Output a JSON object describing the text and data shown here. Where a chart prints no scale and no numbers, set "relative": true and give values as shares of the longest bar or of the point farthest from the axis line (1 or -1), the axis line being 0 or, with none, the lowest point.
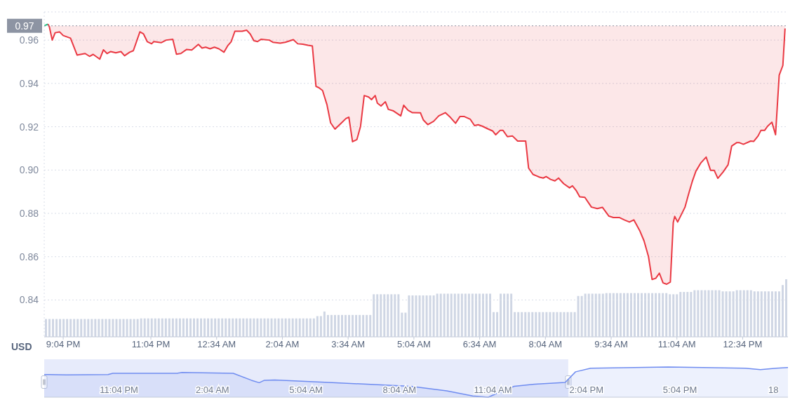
{
  "chart_data": [
    {
      "type": "line",
      "ylabel": "USD",
      "xlim": [
        "--01-17T20:38",
        "--01-18T13:36"
      ],
      "xticks": [
        {
          "value": "--01-17T21:04",
          "label": "9:04 PM"
        },
        {
          "value": "--01-17T23:04",
          "label": "11:04 PM"
        },
        {
          "value": "--01-18T00:34",
          "label": "12:34 AM"
        },
        {
          "value": "--01-18T02:04",
          "label": "2:04 AM"
        },
        {
          "value": "--01-18T03:34",
          "label": "3:34 AM"
        },
        {
          "value": "--01-18T05:04",
          "label": "5:04 AM"
        },
        {
          "value": "--01-18T06:34",
          "label": "6:34 AM"
        },
        {
          "value": "--01-18T08:04",
          "label": "8:04 AM"
        },
        {
          "value": "--01-18T09:34",
          "label": "9:34 AM"
        },
        {
          "value": "--01-18T11:04",
          "label": "11:04 AM"
        },
        {
          "value": "--01-18T12:34",
          "label": "12:34 PM"
        }
      ],
      "ylim": [
        0.823,
        0.973
      ],
      "yticks": [
        0.84,
        0.86,
        0.88,
        {
          "value": 0.9,
          "label": "0.90"
        },
        0.92,
        0.94,
        0.96
      ],
      "grid": "y",
      "ref_lines": [
        {
          "axis": "y",
          "value": 0.9666,
          "label": "0.97",
          "color": "#8d94a3",
          "line_style": "dotted"
        }
      ],
      "series": [
        {
          "color": "#16c784",
          "x": [
            "--01-17T20:38",
            "--01-17T20:43"
          ],
          "values": [
            0.9666,
            0.9674
          ]
        },
        {
          "color": "#ea3943",
          "x": [
            "--01-17T20:43",
            "--01-17T20:45",
            "--01-17T20:49",
            "--01-17T20:53",
            "--01-17T20:59",
            "--01-17T21:04",
            "--01-17T21:14",
            "--01-17T21:23",
            "--01-17T21:34",
            "--01-17T21:40",
            "--01-17T21:45",
            "--01-17T21:54",
            "--01-17T21:59",
            "--01-17T22:04",
            "--01-17T22:09",
            "--01-17T22:16",
            "--01-17T22:23",
            "--01-17T22:28",
            "--01-17T22:35",
            "--01-17T22:40",
            "--01-17T22:49",
            "--01-17T22:54",
            "--01-17T22:59",
            "--01-17T23:05",
            "--01-17T23:08",
            "--01-17T23:18",
            "--01-17T23:25",
            "--01-17T23:34",
            "--01-17T23:39",
            "--01-17T23:45",
            "--01-17T23:53",
            "--01-18T00:00",
            "--01-18T00:09",
            "--01-18T00:14",
            "--01-18T00:19",
            "--01-18T00:25",
            "--01-18T00:31",
            "--01-18T00:37",
            "--01-18T00:44",
            "--01-18T00:49",
            "--01-18T00:54",
            "--01-18T00:59",
            "--01-18T01:09",
            "--01-18T01:15",
            "--01-18T01:20",
            "--01-18T01:25",
            "--01-18T01:30",
            "--01-18T01:35",
            "--01-18T01:46",
            "--01-18T01:51",
            "--01-18T02:01",
            "--01-18T02:08",
            "--01-18T02:19",
            "--01-18T02:25",
            "--01-18T02:32",
            "--01-18T02:39",
            "--01-18T02:45",
            "--01-18T02:50",
            "--01-18T02:54",
            "--01-18T02:59",
            "--01-18T03:05",
            "--01-18T03:10",
            "--01-18T03:16",
            "--01-18T03:24",
            "--01-18T03:31",
            "--01-18T03:35",
            "--01-18T03:40",
            "--01-18T03:46",
            "--01-18T03:51",
            "--01-18T03:56",
            "--01-18T04:02",
            "--01-18T04:06",
            "--01-18T04:11",
            "--01-18T04:14",
            "--01-18T04:19",
            "--01-18T04:25",
            "--01-18T04:29",
            "--01-18T04:36",
            "--01-18T04:46",
            "--01-18T04:50",
            "--01-18T04:56",
            "--01-18T05:02",
            "--01-18T05:13",
            "--01-18T05:17",
            "--01-18T05:23",
            "--01-18T05:31",
            "--01-18T05:38",
            "--01-18T05:47",
            "--01-18T05:54",
            "--01-18T06:01",
            "--01-18T06:07",
            "--01-18T06:13",
            "--01-18T06:21",
            "--01-18T06:27",
            "--01-18T06:32",
            "--01-18T06:38",
            "--01-18T06:46",
            "--01-18T06:52",
            "--01-18T06:56",
            "--01-18T07:02",
            "--01-18T07:06",
            "--01-18T07:12",
            "--01-18T07:19",
            "--01-18T07:26",
            "--01-18T07:37",
            "--01-18T07:41",
            "--01-18T07:47",
            "--01-18T07:56",
            "--01-18T08:01",
            "--01-18T08:05",
            "--01-18T08:11",
            "--01-18T08:17",
            "--01-18T08:22",
            "--01-18T08:29",
            "--01-18T08:37",
            "--01-18T08:41",
            "--01-18T08:46",
            "--01-18T08:51",
            "--01-18T08:58",
            "--01-18T09:07",
            "--01-18T09:15",
            "--01-18T09:22",
            "--01-18T09:31",
            "--01-18T09:37",
            "--01-18T09:45",
            "--01-18T09:52",
            "--01-18T09:59",
            "--01-18T10:05",
            "--01-18T10:13",
            "--01-18T10:19",
            "--01-18T10:25",
            "--01-18T10:30",
            "--01-18T10:35",
            "--01-18T10:40",
            "--01-18T10:45",
            "--01-18T10:50",
            "--01-18T10:55",
            "--01-18T10:59",
            "--01-18T11:01",
            "--01-18T11:05",
            "--01-18T11:15",
            "--01-18T11:20",
            "--01-18T11:25",
            "--01-18T11:30",
            "--01-18T11:37",
            "--01-18T11:44",
            "--01-18T11:50",
            "--01-18T11:55",
            "--01-18T12:00",
            "--01-18T12:07",
            "--01-18T12:14",
            "--01-18T12:19",
            "--01-18T12:26",
            "--01-18T12:29",
            "--01-18T12:35",
            "--01-18T12:45",
            "--01-18T12:49",
            "--01-18T12:55",
            "--01-18T12:59",
            "--01-18T13:04",
            "--01-18T13:08",
            "--01-18T13:14",
            "--01-18T13:19",
            "--01-18T13:24",
            "--01-18T13:29",
            "--01-18T13:32"
          ],
          "values": [
            0.9674,
            0.9662,
            0.96,
            0.9634,
            0.9638,
            0.9621,
            0.9609,
            0.9531,
            0.9538,
            0.9525,
            0.9534,
            0.9512,
            0.9555,
            0.9538,
            0.9547,
            0.9541,
            0.9547,
            0.9528,
            0.9544,
            0.9551,
            0.9638,
            0.9628,
            0.9593,
            0.9583,
            0.9593,
            0.9588,
            0.96,
            0.9604,
            0.9535,
            0.9538,
            0.9557,
            0.9554,
            0.958,
            0.9563,
            0.9567,
            0.956,
            0.9567,
            0.956,
            0.9544,
            0.9573,
            0.9593,
            0.9641,
            0.9641,
            0.9646,
            0.9628,
            0.9597,
            0.9593,
            0.9604,
            0.96,
            0.959,
            0.9586,
            0.959,
            0.9602,
            0.9583,
            0.9581,
            0.9576,
            0.9573,
            0.9386,
            0.938,
            0.9367,
            0.9302,
            0.9218,
            0.9189,
            0.9215,
            0.9238,
            0.9244,
            0.9131,
            0.9141,
            0.9202,
            0.9344,
            0.9337,
            0.9325,
            0.9344,
            0.9309,
            0.9296,
            0.9315,
            0.928,
            0.9273,
            0.925,
            0.9299,
            0.9276,
            0.9265,
            0.9264,
            0.9231,
            0.921,
            0.9225,
            0.925,
            0.9265,
            0.9243,
            0.9216,
            0.9247,
            0.9247,
            0.9235,
            0.9205,
            0.9209,
            0.9202,
            0.9189,
            0.918,
            0.9163,
            0.9183,
            0.9183,
            0.9154,
            0.9157,
            0.9134,
            0.9134,
            0.9009,
            0.898,
            0.8967,
            0.8963,
            0.897,
            0.8957,
            0.895,
            0.8963,
            0.8937,
            0.8918,
            0.8927,
            0.8906,
            0.8876,
            0.8874,
            0.8829,
            0.8822,
            0.8828,
            0.8787,
            0.8781,
            0.8781,
            0.877,
            0.876,
            0.877,
            0.8721,
            0.8673,
            0.8602,
            0.8495,
            0.85,
            0.8524,
            0.8479,
            0.8473,
            0.8483,
            0.8757,
            0.8786,
            0.876,
            0.8828,
            0.8889,
            0.8947,
            0.8995,
            0.9034,
            0.906,
            0.8999,
            0.8999,
            0.8962,
            0.899,
            0.9024,
            0.9111,
            0.9127,
            0.9127,
            0.9119,
            0.9134,
            0.9132,
            0.9157,
            0.9183,
            0.9183,
            0.9202,
            0.9221,
            0.9163,
            0.9438,
            0.9483,
            0.9654
          ]
        }
      ]
    },
    {
      "type": "bar",
      "relative": true,
      "color": "#cfd6e4",
      "categories": [
        null,
        null,
        null,
        null,
        null,
        null,
        null,
        null,
        null,
        null,
        null,
        null,
        null,
        null,
        null,
        null,
        null,
        null,
        null,
        null,
        null,
        null,
        null,
        null,
        null,
        null,
        null,
        null,
        null,
        null,
        null,
        null,
        null,
        null,
        null,
        null,
        null,
        null,
        null,
        null,
        null,
        null,
        null,
        null,
        null,
        null,
        null,
        null,
        null,
        null,
        null,
        null,
        null,
        null,
        null,
        null,
        null,
        null,
        null,
        null,
        null,
        null,
        null,
        null,
        null,
        null,
        null,
        null,
        null,
        null,
        null,
        null,
        null,
        null,
        null,
        null,
        null,
        null,
        null,
        null,
        null,
        null,
        null,
        null,
        null,
        null,
        null,
        null,
        null,
        null,
        null,
        null,
        null,
        null,
        null,
        null,
        null,
        null,
        null,
        null,
        null,
        null,
        null,
        null,
        null,
        null,
        null,
        null,
        null,
        null,
        null,
        null,
        null,
        null,
        null,
        null,
        null,
        null,
        null,
        null,
        null,
        null,
        null,
        null,
        null,
        null,
        null,
        null,
        null,
        null,
        null,
        null,
        null,
        null,
        null,
        null,
        null,
        null,
        null,
        null,
        null,
        null,
        null,
        null,
        null,
        null,
        null,
        null,
        null,
        null,
        null,
        null,
        null,
        null,
        null,
        null,
        null,
        null,
        null,
        null,
        null,
        null,
        null,
        null,
        null,
        null,
        null,
        null,
        null,
        null,
        null,
        null,
        null,
        null,
        null,
        null,
        null,
        null,
        null,
        null,
        null,
        null,
        null,
        null,
        null,
        null,
        null,
        null,
        null,
        null,
        null,
        null,
        null,
        null,
        null,
        null,
        null,
        null,
        null,
        null,
        null,
        null,
        null,
        null,
        null,
        null,
        null,
        null,
        null,
        null,
        null
      ],
      "values": [
        0.31,
        0.31,
        0.31,
        0.31,
        0.31,
        0.31,
        0.31,
        0.31,
        0.31,
        0.31,
        0.31,
        0.31,
        0.31,
        0.31,
        0.31,
        0.31,
        0.31,
        0.31,
        0.31,
        0.31,
        0.31,
        0.31,
        0.31,
        0.31,
        0.31,
        0.31,
        0.31,
        0.32,
        0.32,
        0.32,
        0.32,
        0.32,
        0.32,
        0.32,
        0.32,
        0.32,
        0.32,
        0.32,
        0.32,
        0.32,
        0.32,
        0.32,
        0.32,
        0.32,
        0.32,
        0.32,
        0.32,
        0.32,
        0.32,
        0.32,
        0.32,
        0.32,
        0.32,
        0.32,
        0.32,
        0.32,
        0.32,
        0.32,
        0.32,
        0.32,
        0.32,
        0.32,
        0.32,
        0.32,
        0.32,
        0.32,
        0.32,
        0.32,
        0.32,
        0.32,
        0.32,
        0.32,
        0.32,
        0.32,
        0.32,
        0.32,
        0.32,
        0.36,
        0.36,
        0.44,
        0.38,
        0.38,
        0.38,
        0.38,
        0.38,
        0.38,
        0.38,
        0.38,
        0.38,
        0.38,
        0.38,
        0.38,
        0.38,
        0.74,
        0.74,
        0.74,
        0.74,
        0.74,
        0.74,
        0.74,
        0.74,
        0.42,
        0.42,
        0.72,
        0.72,
        0.72,
        0.72,
        0.72,
        0.72,
        0.72,
        0.72,
        0.75,
        0.75,
        0.75,
        0.75,
        0.75,
        0.75,
        0.75,
        0.75,
        0.75,
        0.75,
        0.75,
        0.75,
        0.75,
        0.75,
        0.75,
        0.75,
        0.43,
        0.43,
        0.75,
        0.75,
        0.75,
        0.75,
        0.43,
        0.43,
        0.43,
        0.43,
        0.43,
        0.43,
        0.43,
        0.43,
        0.43,
        0.43,
        0.43,
        0.43,
        0.43,
        0.43,
        0.43,
        0.43,
        0.43,
        0.43,
        0.71,
        0.71,
        0.75,
        0.75,
        0.75,
        0.75,
        0.75,
        0.75,
        0.76,
        0.76,
        0.76,
        0.76,
        0.76,
        0.76,
        0.76,
        0.76,
        0.76,
        0.76,
        0.76,
        0.76,
        0.76,
        0.76,
        0.76,
        0.76,
        0.76,
        0.76,
        0.74,
        0.74,
        0.74,
        0.78,
        0.78,
        0.78,
        0.78,
        0.81,
        0.81,
        0.81,
        0.81,
        0.81,
        0.81,
        0.81,
        0.81,
        0.79,
        0.79,
        0.79,
        0.79,
        0.81,
        0.81,
        0.81,
        0.81,
        0.81,
        0.79,
        0.79,
        0.79,
        0.79,
        0.79,
        0.79,
        0.79,
        0.79,
        0.9,
        1
      ]
    },
    {
      "type": "area",
      "relative": true,
      "color": "#6f8cf0",
      "xlim": [
        "--01-17T20:40",
        "--01-18T20:32"
      ],
      "xticks": [
        {
          "value": "--01-17T23:04",
          "label": "11:04 PM"
        },
        {
          "value": "--01-18T02:04",
          "label": "2:04 AM"
        },
        {
          "value": "--01-18T05:04",
          "label": "5:04 AM"
        },
        {
          "value": "--01-18T08:04",
          "label": "8:04 AM"
        },
        {
          "value": "--01-18T11:04",
          "label": "11:04 AM"
        },
        {
          "value": "--01-18T14:04",
          "label": "2:04 PM"
        },
        {
          "value": "--01-18T17:04",
          "label": "5:04 PM"
        },
        {
          "value": "--01-18T20:04",
          "label": "18"
        }
      ],
      "bands": [
        {
          "axis": "x",
          "from": "--01-17T20:40",
          "to": "--01-18T13:29",
          "color": "#c9d3f7"
        }
      ],
      "x": [
        "--01-17T20:40",
        "--01-17T20:49",
        "--01-17T21:23",
        "--01-17T22:43",
        "--01-17T22:52",
        "--01-18T00:56",
        "--01-18T01:05",
        "--01-18T02:44",
        "--01-18T03:19",
        "--01-18T03:34",
        "--01-18T03:44",
        "--01-18T04:04",
        "--01-18T05:48",
        "--01-18T07:36",
        "--01-18T08:26",
        "--01-18T09:35",
        "--01-18T10:25",
        "--01-18T10:55",
        "--01-18T11:19",
        "--01-18T11:45",
        "--01-18T12:24",
        "--01-18T13:23",
        "--01-18T13:43",
        "--01-18T14:12",
        "--01-18T16:41",
        "--01-18T19:10",
        "--01-18T19:39",
        "--01-18T20:09",
        "--01-18T20:32"
      ],
      "values": [
        0.75,
        0.75,
        0.74,
        0.75,
        0.79,
        0.79,
        0.82,
        0.79,
        0.56,
        0.48,
        0.56,
        0.57,
        0.49,
        0.4,
        0.36,
        0.21,
        0.04,
        0,
        0.18,
        0.36,
        0.43,
        0.49,
        0.84,
        0.96,
        1,
        0.96,
        0.91,
        0.96,
        0.98
      ]
    }
  ]
}
